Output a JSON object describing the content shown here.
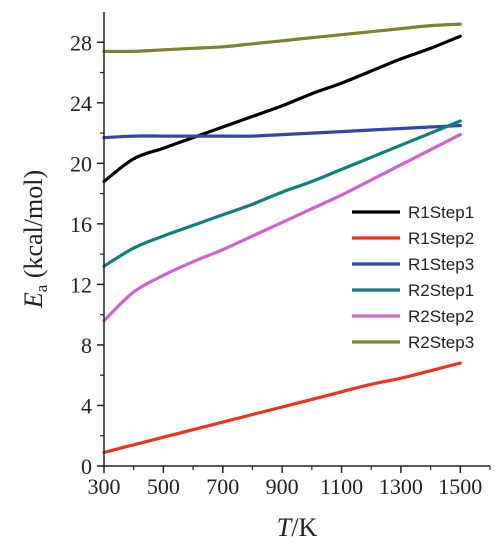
{
  "chart_data": {
    "type": "line",
    "xlabel_italic": "T",
    "xlabel_rest": "/K",
    "ylabel_italic": "E",
    "ylabel_sub": "a",
    "ylabel_rest": " (kcal/mol)",
    "xlim": [
      300,
      1600
    ],
    "ylim": [
      0,
      30
    ],
    "xticks": [
      "300",
      "500",
      "700",
      "900",
      "1100",
      "1300",
      "1500"
    ],
    "yticks": [
      "0",
      "4",
      "8",
      "12",
      "16",
      "20",
      "24",
      "28"
    ],
    "x": [
      300,
      400,
      500,
      600,
      700,
      800,
      900,
      1000,
      1100,
      1200,
      1300,
      1400,
      1500
    ],
    "legend_position": "right",
    "series": [
      {
        "name": "R1Step1",
        "color": "#000000",
        "values": [
          18.8,
          20.3,
          21.0,
          21.7,
          22.4,
          23.1,
          23.8,
          24.6,
          25.3,
          26.1,
          26.9,
          27.6,
          28.4
        ]
      },
      {
        "name": "R1Step2",
        "color": "#ee3322",
        "values": [
          0.9,
          1.4,
          1.9,
          2.4,
          2.9,
          3.4,
          3.9,
          4.4,
          4.9,
          5.4,
          5.8,
          6.3,
          6.8
        ]
      },
      {
        "name": "R1Step3",
        "color": "#3344aa",
        "values": [
          21.7,
          21.8,
          21.8,
          21.8,
          21.8,
          21.8,
          21.9,
          22.0,
          22.1,
          22.2,
          22.3,
          22.4,
          22.5
        ]
      },
      {
        "name": "R2Step1",
        "color": "#11807a",
        "values": [
          13.2,
          14.4,
          15.2,
          15.9,
          16.6,
          17.3,
          18.1,
          18.8,
          19.6,
          20.4,
          21.2,
          22.0,
          22.8
        ]
      },
      {
        "name": "R2Step2",
        "color": "#cc66cc",
        "values": [
          9.6,
          11.5,
          12.6,
          13.5,
          14.3,
          15.2,
          16.1,
          17.0,
          17.9,
          18.9,
          19.9,
          20.9,
          21.9
        ]
      },
      {
        "name": "R2Step3",
        "color": "#808031",
        "values": [
          27.4,
          27.4,
          27.5,
          27.6,
          27.7,
          27.9,
          28.1,
          28.3,
          28.5,
          28.7,
          28.9,
          29.1,
          29.2
        ]
      }
    ]
  }
}
